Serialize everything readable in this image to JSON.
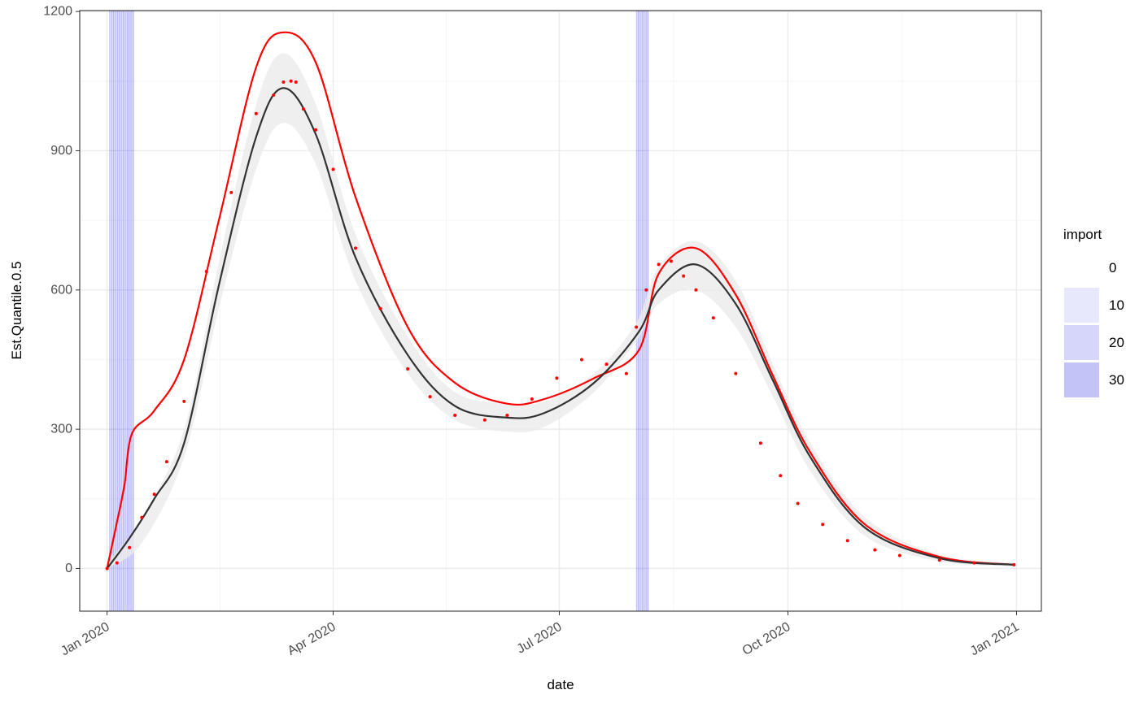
{
  "chart_data": {
    "type": "line",
    "xlabel": "date",
    "ylabel": "Est.Quantile.0.5",
    "x_range": [
      "2019-12-21",
      "2021-01-11"
    ],
    "ylim": [
      -92,
      1202
    ],
    "y_ticks": [
      0,
      300,
      600,
      900,
      1200
    ],
    "x_ticks": [
      {
        "date": "2020-01-01",
        "label": "Jan 2020"
      },
      {
        "date": "2020-04-01",
        "label": "Apr 2020"
      },
      {
        "date": "2020-07-01",
        "label": "Jul 2020"
      },
      {
        "date": "2020-10-01",
        "label": "Oct 2020"
      },
      {
        "date": "2021-01-01",
        "label": "Jan 2021"
      }
    ],
    "grid": true,
    "legend": {
      "title": "import",
      "position": "right",
      "entries": [
        {
          "label": "0",
          "color": "#ffffff"
        },
        {
          "label": "10",
          "color": "#e8e8fc"
        },
        {
          "label": "20",
          "color": "#d6d6fa"
        },
        {
          "label": "30",
          "color": "#c3c3f8"
        }
      ]
    },
    "import_bands": [
      {
        "start": "2020-01-02",
        "end": "2020-01-12",
        "color": "#0000ff"
      },
      {
        "start": "2020-08-01",
        "end": "2020-08-06",
        "color": "#0000ff"
      }
    ],
    "series": [
      {
        "style": "ribbon",
        "color": "#ebebeb",
        "x": [
          "2020-01-01",
          "2020-01-15",
          "2020-02-01",
          "2020-02-15",
          "2020-03-01",
          "2020-03-12",
          "2020-03-25",
          "2020-04-10",
          "2020-05-01",
          "2020-05-20",
          "2020-06-10",
          "2020-06-25",
          "2020-07-15",
          "2020-08-01",
          "2020-08-10",
          "2020-08-25",
          "2020-09-10",
          "2020-09-25",
          "2020-10-10",
          "2020-11-01",
          "2020-12-01",
          "2020-12-31"
        ],
        "lower": [
          0,
          55,
          240,
          560,
          860,
          960,
          870,
          620,
          420,
          320,
          295,
          305,
          380,
          490,
          570,
          600,
          520,
          370,
          210,
          70,
          15,
          5
        ],
        "upper": [
          10,
          110,
          300,
          660,
          1000,
          1110,
          1000,
          720,
          500,
          380,
          355,
          360,
          420,
          530,
          650,
          705,
          620,
          440,
          270,
          110,
          30,
          12
        ]
      },
      {
        "style": "points",
        "color": "#ff0000",
        "x": [
          "2020-01-01",
          "2020-01-05",
          "2020-01-10",
          "2020-01-15",
          "2020-01-20",
          "2020-01-25",
          "2020-02-01",
          "2020-02-10",
          "2020-02-20",
          "2020-03-01",
          "2020-03-08",
          "2020-03-12",
          "2020-03-15",
          "2020-03-17",
          "2020-03-20",
          "2020-03-25",
          "2020-04-01",
          "2020-04-10",
          "2020-04-20",
          "2020-05-01",
          "2020-05-10",
          "2020-05-20",
          "2020-06-01",
          "2020-06-10",
          "2020-06-20",
          "2020-06-30",
          "2020-07-10",
          "2020-07-20",
          "2020-07-28",
          "2020-08-01",
          "2020-08-05",
          "2020-08-10",
          "2020-08-15",
          "2020-08-20",
          "2020-08-25",
          "2020-09-01",
          "2020-09-10",
          "2020-09-20",
          "2020-09-28",
          "2020-10-05",
          "2020-10-15",
          "2020-10-25",
          "2020-11-05",
          "2020-11-15",
          "2020-12-01",
          "2020-12-15",
          "2020-12-31"
        ],
        "y": [
          0,
          12,
          45,
          110,
          160,
          230,
          360,
          640,
          810,
          980,
          1020,
          1048,
          1050,
          1048,
          990,
          945,
          860,
          690,
          560,
          430,
          370,
          330,
          320,
          330,
          365,
          410,
          450,
          440,
          420,
          520,
          600,
          655,
          662,
          630,
          600,
          540,
          420,
          270,
          200,
          140,
          95,
          60,
          40,
          28,
          18,
          12,
          8
        ]
      },
      {
        "style": "line",
        "color": "#ff0000",
        "x": [
          "2020-01-01",
          "2020-01-05",
          "2020-01-08",
          "2020-01-11",
          "2020-01-20",
          "2020-02-01",
          "2020-02-15",
          "2020-03-01",
          "2020-03-12",
          "2020-03-25",
          "2020-04-10",
          "2020-05-01",
          "2020-05-20",
          "2020-06-10",
          "2020-06-25",
          "2020-07-15",
          "2020-08-02",
          "2020-08-10",
          "2020-08-25",
          "2020-09-10",
          "2020-09-25",
          "2020-10-10",
          "2020-11-01",
          "2020-12-01",
          "2020-12-31"
        ],
        "y": [
          0,
          100,
          180,
          290,
          340,
          450,
          750,
          1080,
          1155,
          1090,
          800,
          520,
          400,
          355,
          365,
          410,
          470,
          635,
          690,
          590,
          415,
          250,
          95,
          25,
          8
        ]
      },
      {
        "style": "line",
        "color": "#333333",
        "x": [
          "2020-01-01",
          "2020-01-10",
          "2020-01-20",
          "2020-02-01",
          "2020-02-15",
          "2020-03-01",
          "2020-03-12",
          "2020-03-25",
          "2020-04-10",
          "2020-05-01",
          "2020-05-20",
          "2020-06-10",
          "2020-06-25",
          "2020-07-15",
          "2020-08-02",
          "2020-08-10",
          "2020-08-25",
          "2020-09-10",
          "2020-09-25",
          "2020-10-10",
          "2020-11-01",
          "2020-12-01",
          "2020-12-31"
        ],
        "y": [
          0,
          65,
          150,
          270,
          610,
          930,
          1035,
          935,
          670,
          460,
          350,
          325,
          335,
          400,
          510,
          600,
          655,
          570,
          405,
          240,
          88,
          22,
          8
        ]
      }
    ]
  }
}
